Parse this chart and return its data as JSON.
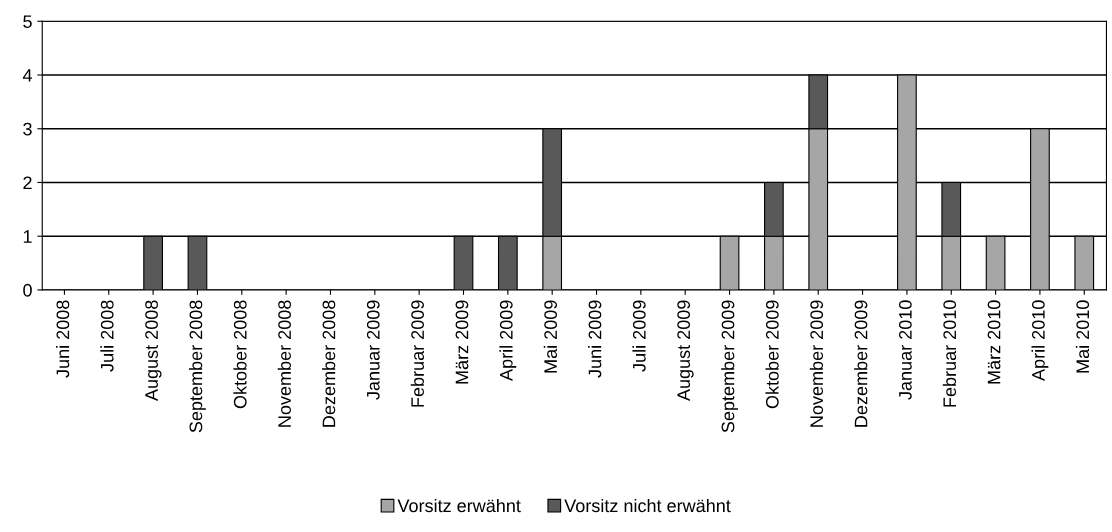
{
  "chart_data": {
    "type": "bar",
    "stacked": true,
    "categories": [
      "Juni 2008",
      "Juli 2008",
      "August 2008",
      "September 2008",
      "Oktober 2008",
      "November 2008",
      "Dezember 2008",
      "Januar 2009",
      "Februar 2009",
      "März 2009",
      "April 2009",
      "Mai 2009",
      "Juni 2009",
      "Juli 2009",
      "August 2009",
      "September 2009",
      "Oktober 2009",
      "November 2009",
      "Dezember 2009",
      "Januar 2010",
      "Februar 2010",
      "März 2010",
      "April 2010",
      "Mai 2010"
    ],
    "series": [
      {
        "name": "Vorsitz erwähnt",
        "color": "#a6a6a6",
        "values": [
          0,
          0,
          0,
          0,
          0,
          0,
          0,
          0,
          0,
          0,
          0,
          1,
          0,
          0,
          0,
          1,
          1,
          3,
          0,
          4,
          1,
          1,
          3,
          1
        ]
      },
      {
        "name": "Vorsitz nicht erwähnt",
        "color": "#595959",
        "values": [
          0,
          0,
          1,
          1,
          0,
          0,
          0,
          0,
          0,
          1,
          1,
          2,
          0,
          0,
          0,
          0,
          1,
          1,
          0,
          0,
          1,
          0,
          0,
          0
        ]
      }
    ],
    "ylim": [
      0,
      5
    ],
    "yticks": [
      0,
      1,
      2,
      3,
      4,
      5
    ],
    "grid": "y",
    "legend": "bottom"
  }
}
